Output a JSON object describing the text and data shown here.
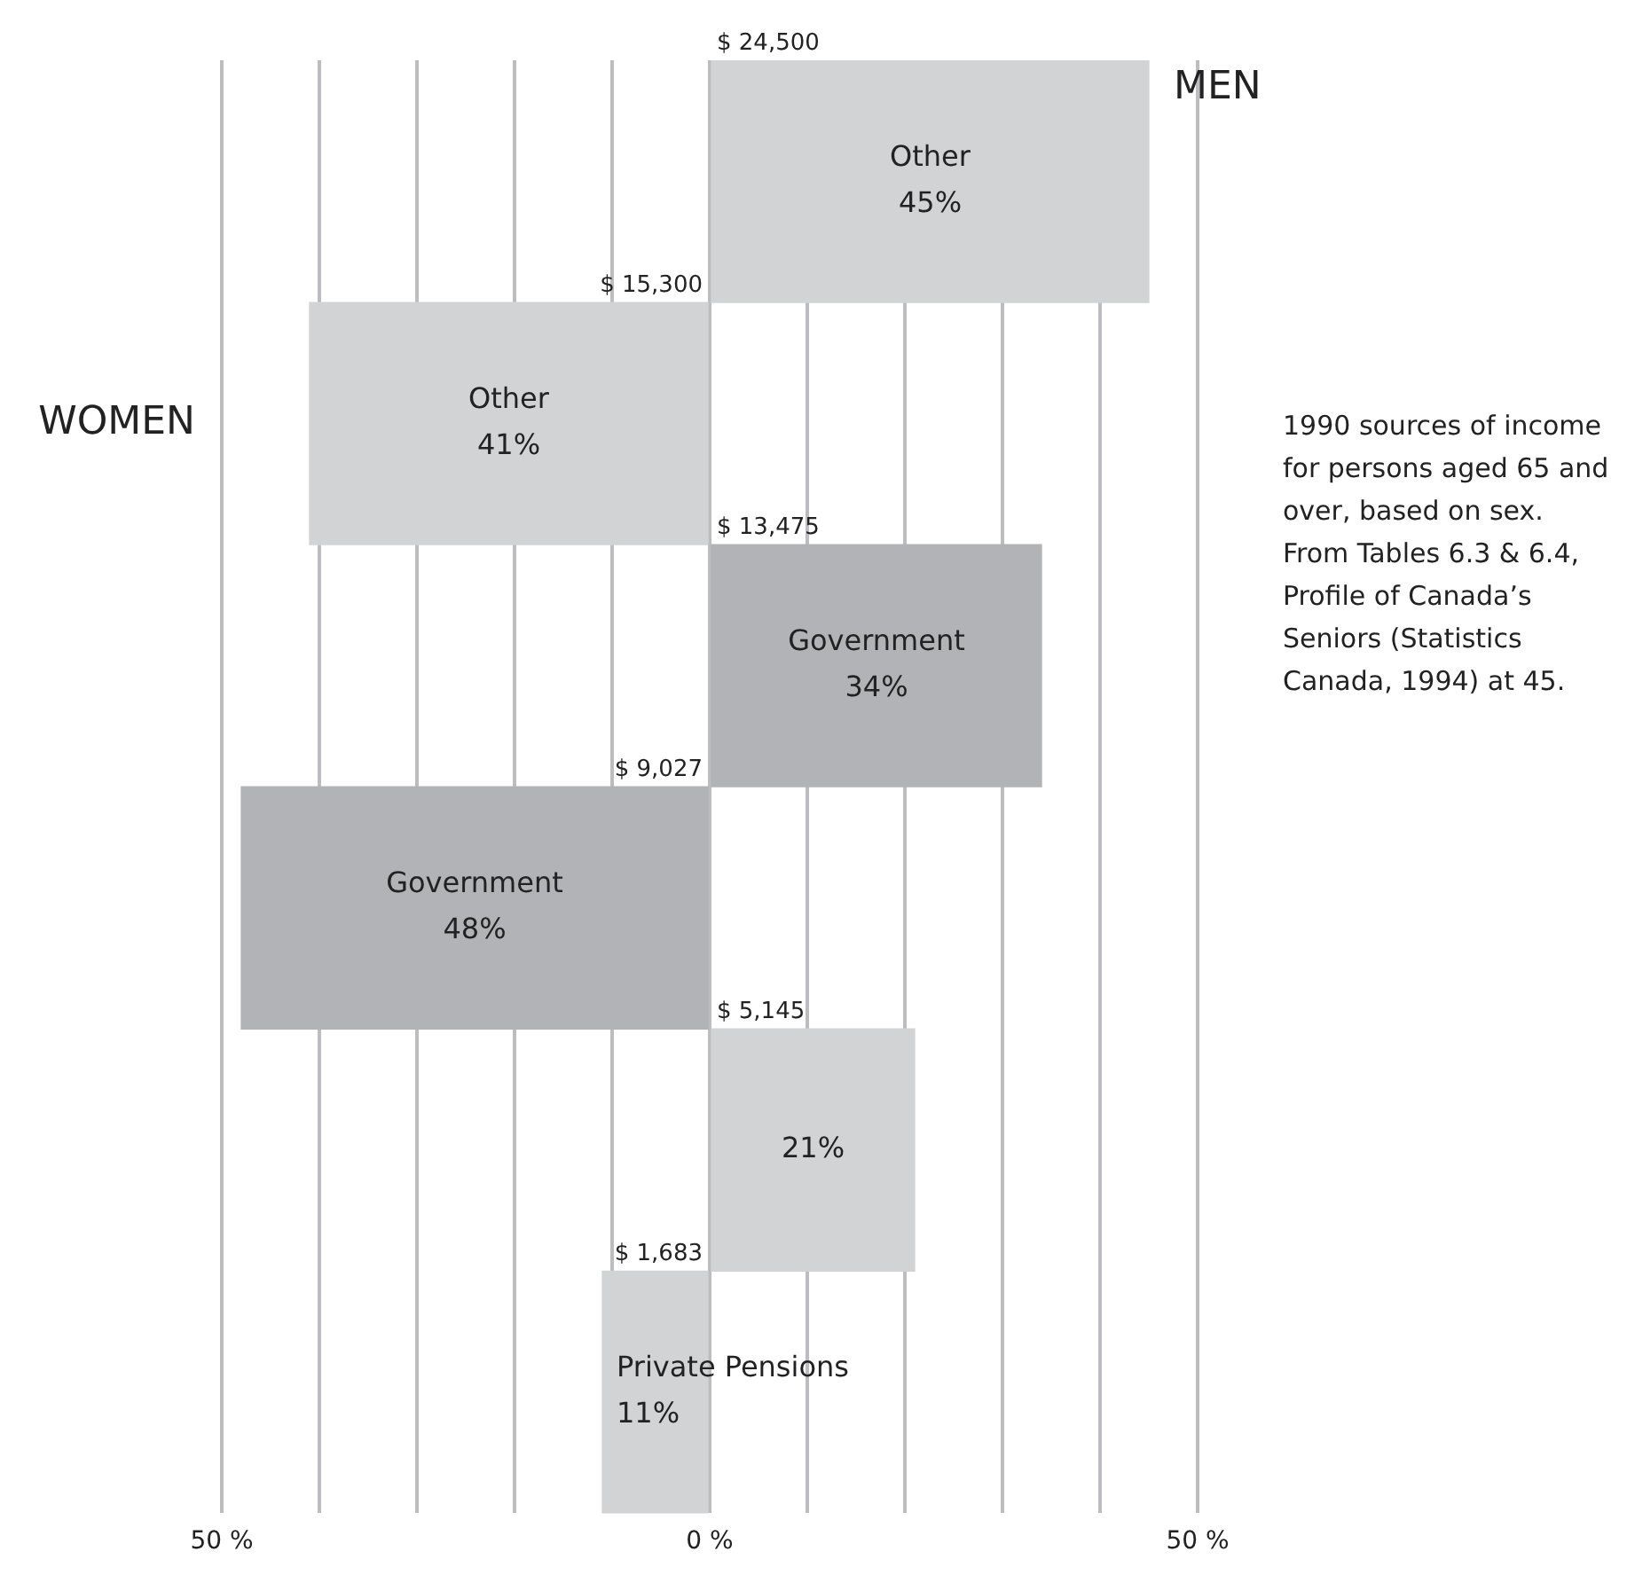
{
  "chart_data": {
    "type": "bar",
    "orientation": "horizontal",
    "categories": [
      "Other",
      "Other",
      "Government",
      "Government",
      null,
      "Private Pensions"
    ],
    "series": [
      {
        "name": "MEN",
        "colors": [
          "#d2d3d5",
          null,
          "#b2b3b6",
          null,
          "#d2d3d5",
          null
        ],
        "values": [
          45,
          null,
          34,
          null,
          21,
          null
        ],
        "base": [
          0,
          null,
          0,
          null,
          0,
          null
        ],
        "value_labels": [
          "45%",
          null,
          "34%",
          null,
          "21%",
          null
        ]
      },
      {
        "name": "WOMEN",
        "colors": [
          null,
          "#d2d3d5",
          null,
          "#b2b3b6",
          null,
          "#d2d3d5"
        ],
        "values": [
          null,
          41,
          null,
          48,
          null,
          11
        ],
        "base": [
          null,
          -41,
          null,
          -48,
          null,
          -11
        ],
        "value_labels": [
          null,
          "41%",
          null,
          "48%",
          null,
          "11%"
        ]
      }
    ],
    "xlim": [
      -50,
      50
    ],
    "xticks": [
      {
        "value": -50,
        "label": "50 %"
      },
      {
        "value": -40,
        "label": null
      },
      {
        "value": -30,
        "label": null
      },
      {
        "value": -20,
        "label": null
      },
      {
        "value": -10,
        "label": null
      },
      {
        "value": 0,
        "label": "0 %"
      },
      {
        "value": 10,
        "label": null
      },
      {
        "value": 20,
        "label": null
      },
      {
        "value": 30,
        "label": null
      },
      {
        "value": 40,
        "label": null
      },
      {
        "value": 50,
        "label": "50 %"
      }
    ],
    "tick_labels": "x",
    "grid": "x",
    "legend": false,
    "annotations": [
      "$ 24,500",
      "$ 15,300",
      "$ 13,475",
      "$ 9,027",
      "$ 5,145",
      "$ 1,683",
      "1990 sources of income for persons aged 65 and over, based on sex. From Tables 6.3 & 6.4, Profile of Canada’s Seniors (Statistics Canada, 1994) at 45."
    ]
  }
}
